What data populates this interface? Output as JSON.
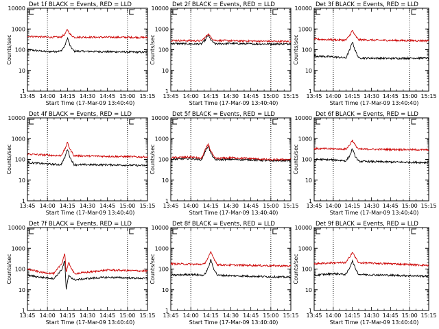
{
  "chart_data": [
    {
      "type": "line",
      "title": "Det 1f BLACK = Events, RED = LLD",
      "xlabel": "Start Time (17-Mar-09 13:40:40)",
      "ylabel": "Counts/sec",
      "yscale": "log",
      "ylim": [
        1,
        10000
      ],
      "xlim": [
        "13:45",
        "15:15"
      ],
      "xticks": [
        "13:45",
        "14:00",
        "14:15",
        "14:30",
        "14:45",
        "15:00",
        "15:15"
      ],
      "yticks": [
        "1",
        "10",
        "100",
        "1000",
        "10000"
      ],
      "vlines": [
        "14:00",
        "15:00"
      ],
      "series": [
        {
          "name": "Events",
          "color": "#000000",
          "x": [
            "13:45",
            "14:00",
            "14:10",
            "14:13",
            "14:15",
            "14:17",
            "14:20",
            "14:45",
            "15:15"
          ],
          "values": [
            100,
            80,
            85,
            150,
            380,
            150,
            85,
            80,
            75
          ]
        },
        {
          "name": "LLD",
          "color": "#cc0000",
          "x": [
            "13:45",
            "14:00",
            "14:10",
            "14:13",
            "14:15",
            "14:17",
            "14:20",
            "14:45",
            "15:15"
          ],
          "values": [
            450,
            400,
            400,
            550,
            950,
            550,
            400,
            400,
            390
          ]
        }
      ]
    },
    {
      "type": "line",
      "title": "Det 2f BLACK = Events, RED = LLD",
      "xlabel": "Start Time (17-Mar-09 13:40:40)",
      "ylabel": "Counts/sec",
      "yscale": "log",
      "ylim": [
        1,
        10000
      ],
      "xlim": [
        "13:45",
        "15:15"
      ],
      "xticks": [
        "13:45",
        "14:00",
        "14:15",
        "14:30",
        "14:45",
        "15:00",
        "15:15"
      ],
      "yticks": [
        "1",
        "10",
        "100",
        "1000",
        "10000"
      ],
      "vlines": [
        "14:00",
        "15:00"
      ],
      "series": [
        {
          "name": "Events",
          "color": "#000000",
          "x": [
            "13:45",
            "14:00",
            "14:08",
            "14:11",
            "14:13",
            "14:15",
            "14:18",
            "14:30",
            "14:45",
            "15:15"
          ],
          "values": [
            200,
            190,
            190,
            300,
            500,
            300,
            190,
            200,
            190,
            190
          ]
        },
        {
          "name": "LLD",
          "color": "#cc0000",
          "x": [
            "13:45",
            "14:00",
            "14:08",
            "14:11",
            "14:13",
            "14:15",
            "14:18",
            "14:30",
            "14:45",
            "15:15"
          ],
          "values": [
            280,
            270,
            270,
            400,
            600,
            400,
            280,
            270,
            260,
            250
          ]
        }
      ]
    },
    {
      "type": "line",
      "title": "Det 3f BLACK = Events, RED = LLD",
      "xlabel": "Start Time (17-Mar-09 13:40:40)",
      "ylabel": "Counts/sec",
      "yscale": "log",
      "ylim": [
        1,
        10000
      ],
      "xlim": [
        "13:45",
        "15:15"
      ],
      "xticks": [
        "13:45",
        "14:00",
        "14:15",
        "14:30",
        "14:45",
        "15:00",
        "15:15"
      ],
      "yticks": [
        "1",
        "10",
        "100",
        "1000",
        "10000"
      ],
      "vlines": [
        "14:00",
        "15:00"
      ],
      "series": [
        {
          "name": "Events",
          "color": "#000000",
          "x": [
            "13:45",
            "14:00",
            "14:10",
            "14:13",
            "14:15",
            "14:17",
            "14:20",
            "14:45",
            "15:15"
          ],
          "values": [
            50,
            45,
            40,
            100,
            250,
            100,
            40,
            38,
            40
          ]
        },
        {
          "name": "LLD",
          "color": "#cc0000",
          "x": [
            "13:45",
            "14:00",
            "14:10",
            "14:13",
            "14:15",
            "14:17",
            "14:20",
            "14:45",
            "15:15"
          ],
          "values": [
            320,
            300,
            290,
            500,
            850,
            500,
            300,
            280,
            270
          ]
        }
      ]
    },
    {
      "type": "line",
      "title": "Det 4f BLACK = Events, RED = LLD",
      "xlabel": "Start Time (17-Mar-09 13:40:40)",
      "ylabel": "Counts/sec",
      "yscale": "log",
      "ylim": [
        1,
        10000
      ],
      "xlim": [
        "13:45",
        "15:15"
      ],
      "xticks": [
        "13:45",
        "14:00",
        "14:15",
        "14:30",
        "14:45",
        "15:00",
        "15:15"
      ],
      "yticks": [
        "1",
        "10",
        "100",
        "1000",
        "10000"
      ],
      "vlines": [
        "14:00",
        "15:00"
      ],
      "series": [
        {
          "name": "Events",
          "color": "#000000",
          "x": [
            "13:45",
            "14:00",
            "14:10",
            "14:13",
            "14:15",
            "14:17",
            "14:20",
            "14:45",
            "15:15"
          ],
          "values": [
            70,
            60,
            55,
            120,
            330,
            120,
            55,
            55,
            50
          ]
        },
        {
          "name": "LLD",
          "color": "#cc0000",
          "x": [
            "13:45",
            "14:00",
            "14:10",
            "14:13",
            "14:15",
            "14:17",
            "14:20",
            "14:45",
            "15:15"
          ],
          "values": [
            180,
            160,
            150,
            300,
            650,
            300,
            150,
            140,
            130
          ]
        }
      ]
    },
    {
      "type": "line",
      "title": "Det 5f BLACK = Events, RED = LLD",
      "xlabel": "Start Time (17-Mar-09 13:40:40)",
      "ylabel": "Counts/sec",
      "yscale": "log",
      "ylim": [
        1,
        10000
      ],
      "xlim": [
        "13:45",
        "15:15"
      ],
      "xticks": [
        "13:45",
        "14:00",
        "14:15",
        "14:30",
        "14:45",
        "15:00",
        "15:15"
      ],
      "yticks": [
        "1",
        "10",
        "100",
        "1000",
        "10000"
      ],
      "vlines": [
        "14:00",
        "15:00"
      ],
      "series": [
        {
          "name": "Events",
          "color": "#000000",
          "x": [
            "13:45",
            "14:00",
            "14:08",
            "14:11",
            "14:13",
            "14:15",
            "14:18",
            "14:30",
            "14:45",
            "15:00",
            "15:15"
          ],
          "values": [
            100,
            110,
            95,
            250,
            450,
            200,
            95,
            100,
            95,
            85,
            90
          ]
        },
        {
          "name": "LLD",
          "color": "#cc0000",
          "x": [
            "13:45",
            "14:00",
            "14:08",
            "14:11",
            "14:13",
            "14:15",
            "14:18",
            "14:30",
            "14:45",
            "15:00",
            "15:15"
          ],
          "values": [
            120,
            130,
            110,
            300,
            550,
            250,
            110,
            120,
            110,
            95,
            100
          ]
        }
      ]
    },
    {
      "type": "line",
      "title": "Det 6f BLACK = Events, RED = LLD",
      "xlabel": "Start Time (17-Mar-09 13:40:40)",
      "ylabel": "Counts/sec",
      "yscale": "log",
      "ylim": [
        1,
        10000
      ],
      "xlim": [
        "13:45",
        "15:15"
      ],
      "xticks": [
        "13:45",
        "14:00",
        "14:15",
        "14:30",
        "14:45",
        "15:00",
        "15:15"
      ],
      "yticks": [
        "1",
        "10",
        "100",
        "1000",
        "10000"
      ],
      "vlines": [
        "14:00",
        "15:00"
      ],
      "series": [
        {
          "name": "Events",
          "color": "#000000",
          "x": [
            "13:45",
            "14:00",
            "14:10",
            "14:13",
            "14:15",
            "14:17",
            "14:20",
            "14:45",
            "15:15"
          ],
          "values": [
            100,
            95,
            85,
            150,
            330,
            150,
            80,
            75,
            70
          ]
        },
        {
          "name": "LLD",
          "color": "#cc0000",
          "x": [
            "13:45",
            "14:00",
            "14:10",
            "14:13",
            "14:15",
            "14:17",
            "14:20",
            "14:45",
            "15:15"
          ],
          "values": [
            330,
            320,
            310,
            500,
            850,
            500,
            310,
            300,
            290
          ]
        }
      ]
    },
    {
      "type": "line",
      "title": "Det 7f BLACK = Events, RED = LLD",
      "xlabel": "Start Time (17-Mar-09 13:40:40)",
      "ylabel": "Counts/sec",
      "yscale": "log",
      "ylim": [
        1,
        10000
      ],
      "xlim": [
        "13:45",
        "15:15"
      ],
      "xticks": [
        "13:45",
        "14:00",
        "14:15",
        "14:30",
        "14:45",
        "15:00",
        "15:15"
      ],
      "yticks": [
        "1",
        "10",
        "100",
        "1000",
        "10000"
      ],
      "vlines": [
        "14:00",
        "15:00"
      ],
      "series": [
        {
          "name": "Events",
          "color": "#000000",
          "x": [
            "13:45",
            "13:55",
            "14:05",
            "14:11",
            "14:13",
            "14:14",
            "14:16",
            "14:20",
            "14:30",
            "14:45",
            "15:15"
          ],
          "values": [
            50,
            40,
            35,
            100,
            260,
            10,
            50,
            30,
            35,
            40,
            35
          ]
        },
        {
          "name": "LLD",
          "color": "#cc0000",
          "x": [
            "13:45",
            "13:55",
            "14:05",
            "14:11",
            "14:13",
            "14:14",
            "14:16",
            "14:20",
            "14:30",
            "14:45",
            "15:15"
          ],
          "values": [
            100,
            70,
            60,
            200,
            600,
            70,
            200,
            60,
            70,
            90,
            80
          ]
        }
      ]
    },
    {
      "type": "line",
      "title": "Det 8f BLACK = Events, RED = LLD",
      "xlabel": "Start Time (17-Mar-09 13:40:40)",
      "ylabel": "Counts/sec",
      "yscale": "log",
      "ylim": [
        1,
        10000
      ],
      "xlim": [
        "13:45",
        "15:15"
      ],
      "xticks": [
        "13:45",
        "14:00",
        "14:15",
        "14:30",
        "14:45",
        "15:00",
        "15:15"
      ],
      "yticks": [
        "1",
        "10",
        "100",
        "1000",
        "10000"
      ],
      "vlines": [
        "14:00",
        "15:00"
      ],
      "series": [
        {
          "name": "Events",
          "color": "#000000",
          "x": [
            "13:45",
            "14:00",
            "14:10",
            "14:13",
            "14:15",
            "14:17",
            "14:20",
            "14:45",
            "15:15"
          ],
          "values": [
            50,
            55,
            50,
            110,
            280,
            110,
            50,
            45,
            40
          ]
        },
        {
          "name": "LLD",
          "color": "#cc0000",
          "x": [
            "13:45",
            "14:00",
            "14:10",
            "14:13",
            "14:15",
            "14:17",
            "14:20",
            "14:45",
            "15:15"
          ],
          "values": [
            180,
            170,
            170,
            350,
            650,
            350,
            160,
            150,
            140
          ]
        }
      ]
    },
    {
      "type": "line",
      "title": "Det 9f BLACK = Events, RED = LLD",
      "xlabel": "Start Time (17-Mar-09 13:40:40)",
      "ylabel": "Counts/sec",
      "yscale": "log",
      "ylim": [
        1,
        10000
      ],
      "xlim": [
        "13:45",
        "15:15"
      ],
      "xticks": [
        "13:45",
        "14:00",
        "14:15",
        "14:30",
        "14:45",
        "15:00",
        "15:15"
      ],
      "yticks": [
        "1",
        "10",
        "100",
        "1000",
        "10000"
      ],
      "vlines": [
        "14:00",
        "15:00"
      ],
      "series": [
        {
          "name": "Events",
          "color": "#000000",
          "x": [
            "13:45",
            "14:00",
            "14:10",
            "14:13",
            "14:15",
            "14:17",
            "14:20",
            "14:45",
            "15:15"
          ],
          "values": [
            50,
            60,
            55,
            120,
            250,
            120,
            55,
            50,
            45
          ]
        },
        {
          "name": "LLD",
          "color": "#cc0000",
          "x": [
            "13:45",
            "14:00",
            "14:10",
            "14:13",
            "14:15",
            "14:17",
            "14:20",
            "14:45",
            "15:15"
          ],
          "values": [
            180,
            200,
            200,
            400,
            650,
            400,
            200,
            180,
            150
          ]
        }
      ]
    }
  ]
}
